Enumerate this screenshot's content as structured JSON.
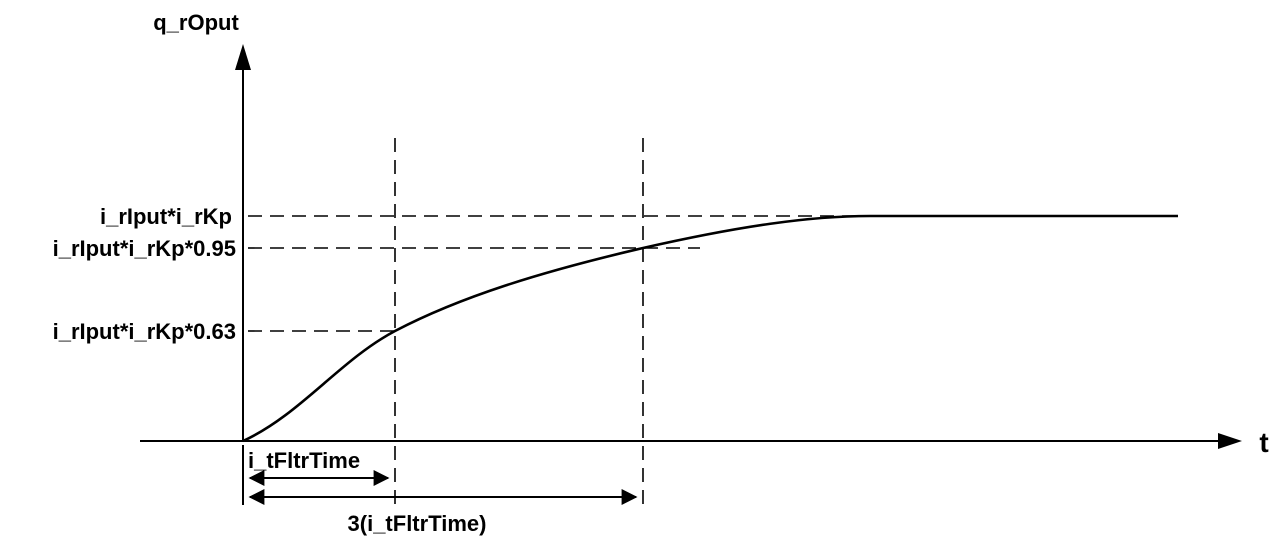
{
  "diagram": {
    "y_axis_label": "q_rOput",
    "x_axis_label": "t",
    "levels": [
      {
        "id": "full",
        "label": "i_rIput*i_rKp",
        "fraction": 1.0
      },
      {
        "id": "p95",
        "label": "i_rIput*i_rKp*0.95",
        "fraction": 0.95
      },
      {
        "id": "p63",
        "label": "i_rIput*i_rKp*0.63",
        "fraction": 0.63
      }
    ],
    "time_markers": [
      {
        "id": "tau",
        "label": "i_tFltrTime",
        "multiple": 1
      },
      {
        "id": "three-tau",
        "label": "3(i_tFltrTime)",
        "multiple": 3
      }
    ]
  }
}
